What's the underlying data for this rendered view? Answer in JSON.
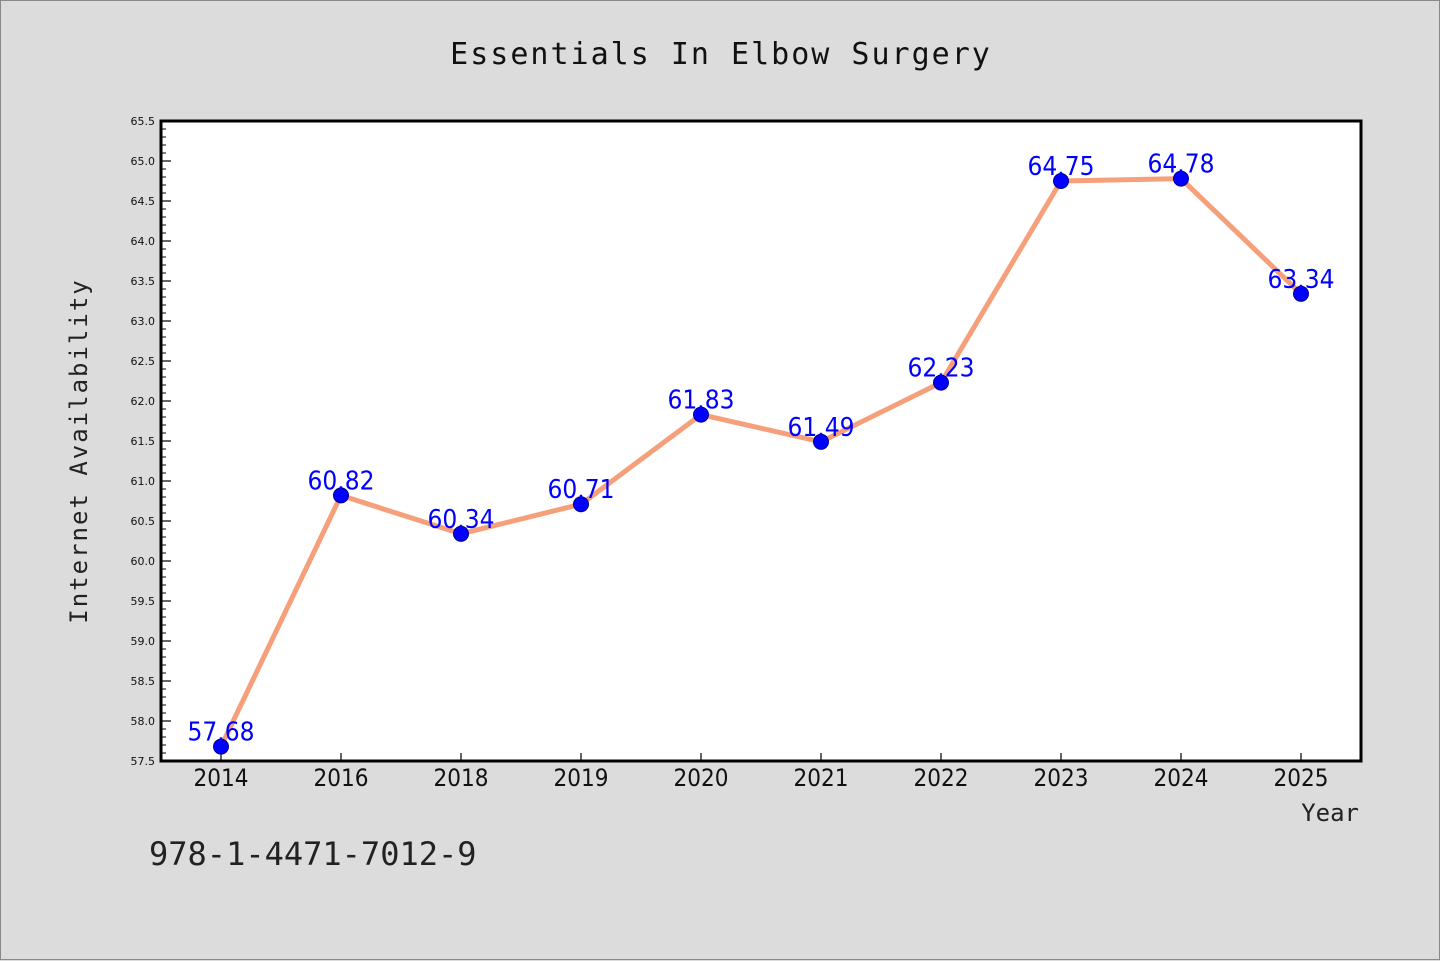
{
  "colors": {
    "background": "#dcdcdc",
    "plot_background": "#ffffff",
    "line": "#f5a07a",
    "marker": "#0000ff",
    "data_label": "#0000ff",
    "frame": "#000000"
  },
  "footnote": "978-1-4471-7012-9",
  "chart_data": {
    "type": "line",
    "title": "Essentials In Elbow Surgery",
    "xlabel": "Year",
    "ylabel": "Internet Availability",
    "categories": [
      "2014",
      "2016",
      "2018",
      "2019",
      "2020",
      "2021",
      "2022",
      "2023",
      "2024",
      "2025"
    ],
    "series": [
      {
        "values": [
          57.68,
          60.82,
          60.34,
          60.71,
          61.83,
          61.49,
          62.23,
          64.75,
          64.78,
          63.34
        ],
        "labels": [
          "57.68",
          "60.82",
          "60.34",
          "60.71",
          "61.83",
          "61.49",
          "62.23",
          "64.75",
          "64.78",
          "63.34"
        ]
      }
    ],
    "ylim": [
      57.5,
      65.5
    ],
    "yticks": [
      "57.5",
      "58.0",
      "58.5",
      "59.0",
      "59.5",
      "60.0",
      "60.5",
      "61.0",
      "61.5",
      "62.0",
      "62.5",
      "63.0",
      "63.5",
      "64.0",
      "64.5",
      "65.0",
      "65.5"
    ],
    "grid": false,
    "legend": "none"
  }
}
